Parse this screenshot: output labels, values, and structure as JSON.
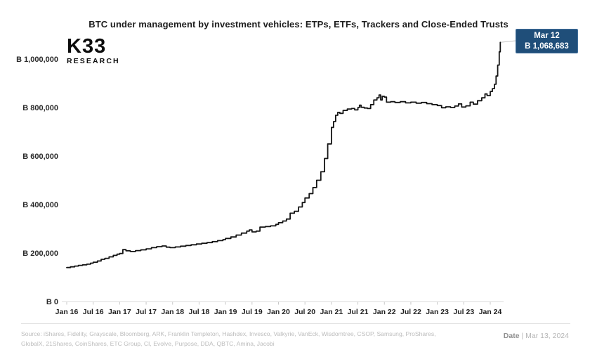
{
  "header": {
    "title": "BTC under management by investment vehicles: ETPs, ETFs, Trackers and Close-Ended Trusts",
    "logo_line1": "K33",
    "logo_line2": "RESEARCH"
  },
  "callout": {
    "date": "Mar 12",
    "value": "₿ 1,068,683",
    "bg_color": "#1F4E79",
    "text_color": "#FFFFFF"
  },
  "chart_data": {
    "type": "line",
    "title": "BTC under management by investment vehicles: ETPs, ETFs, Trackers and Close-Ended Trusts",
    "grid": false,
    "legend": false,
    "line_color": "#141414",
    "x_tick_labels": [
      "Jan 16",
      "Jul 16",
      "Jan 17",
      "Jul 17",
      "Jan 18",
      "Jul 18",
      "Jan 19",
      "Jul 19",
      "Jan 20",
      "Jul 20",
      "Jan 21",
      "Jul 21",
      "Jan 22",
      "Jul 22",
      "Jan 23",
      "Jul 23",
      "Jan 24"
    ],
    "y_tick_labels": [
      "₿ 1,000,000",
      "₿ 800,000",
      "₿ 600,000",
      "₿ 400,000",
      "₿ 200,000",
      "₿ 0"
    ],
    "y_tick_values": [
      1000000,
      800000,
      600000,
      400000,
      200000,
      0
    ],
    "xlim_years": [
      2016.0,
      2024.25
    ],
    "ylim": [
      0,
      1100000
    ],
    "annotation": {
      "label": "Mar 12",
      "value": 1068683,
      "value_text": "₿ 1,068,683"
    },
    "series": [
      {
        "name": "BTC under management",
        "points": [
          [
            2016.0,
            140000
          ],
          [
            2016.07,
            143000
          ],
          [
            2016.15,
            146000
          ],
          [
            2016.22,
            149000
          ],
          [
            2016.3,
            151000
          ],
          [
            2016.38,
            154000
          ],
          [
            2016.45,
            158000
          ],
          [
            2016.5,
            162000
          ],
          [
            2016.58,
            167000
          ],
          [
            2016.65,
            174000
          ],
          [
            2016.72,
            178000
          ],
          [
            2016.8,
            184000
          ],
          [
            2016.88,
            190000
          ],
          [
            2016.95,
            195000
          ],
          [
            2017.0,
            198000
          ],
          [
            2017.06,
            214000
          ],
          [
            2017.12,
            209000
          ],
          [
            2017.2,
            206000
          ],
          [
            2017.3,
            210000
          ],
          [
            2017.4,
            213000
          ],
          [
            2017.5,
            217000
          ],
          [
            2017.6,
            222000
          ],
          [
            2017.7,
            226000
          ],
          [
            2017.8,
            229000
          ],
          [
            2017.88,
            224000
          ],
          [
            2017.95,
            222000
          ],
          [
            2018.05,
            225000
          ],
          [
            2018.15,
            228000
          ],
          [
            2018.25,
            231000
          ],
          [
            2018.35,
            234000
          ],
          [
            2018.45,
            237000
          ],
          [
            2018.55,
            240000
          ],
          [
            2018.65,
            243000
          ],
          [
            2018.75,
            247000
          ],
          [
            2018.85,
            251000
          ],
          [
            2018.95,
            255000
          ],
          [
            2019.0,
            260000
          ],
          [
            2019.1,
            266000
          ],
          [
            2019.2,
            274000
          ],
          [
            2019.3,
            282000
          ],
          [
            2019.4,
            290000
          ],
          [
            2019.45,
            295000
          ],
          [
            2019.5,
            287000
          ],
          [
            2019.58,
            290000
          ],
          [
            2019.65,
            307000
          ],
          [
            2019.75,
            309000
          ],
          [
            2019.85,
            312000
          ],
          [
            2019.95,
            318000
          ],
          [
            2020.0,
            325000
          ],
          [
            2020.08,
            332000
          ],
          [
            2020.15,
            340000
          ],
          [
            2020.22,
            364000
          ],
          [
            2020.3,
            372000
          ],
          [
            2020.38,
            390000
          ],
          [
            2020.45,
            408000
          ],
          [
            2020.5,
            427000
          ],
          [
            2020.58,
            445000
          ],
          [
            2020.65,
            470000
          ],
          [
            2020.72,
            500000
          ],
          [
            2020.8,
            535000
          ],
          [
            2020.87,
            590000
          ],
          [
            2020.93,
            650000
          ],
          [
            2021.0,
            718000
          ],
          [
            2021.04,
            742000
          ],
          [
            2021.08,
            768000
          ],
          [
            2021.12,
            780000
          ],
          [
            2021.16,
            776000
          ],
          [
            2021.22,
            788000
          ],
          [
            2021.3,
            794000
          ],
          [
            2021.38,
            796000
          ],
          [
            2021.44,
            790000
          ],
          [
            2021.5,
            800000
          ],
          [
            2021.53,
            810000
          ],
          [
            2021.56,
            801000
          ],
          [
            2021.62,
            798000
          ],
          [
            2021.68,
            796000
          ],
          [
            2021.74,
            812000
          ],
          [
            2021.8,
            831000
          ],
          [
            2021.86,
            840000
          ],
          [
            2021.9,
            852000
          ],
          [
            2021.93,
            831000
          ],
          [
            2021.96,
            846000
          ],
          [
            2022.0,
            843000
          ],
          [
            2022.04,
            822000
          ],
          [
            2022.12,
            824000
          ],
          [
            2022.2,
            821000
          ],
          [
            2022.3,
            824000
          ],
          [
            2022.4,
            819000
          ],
          [
            2022.5,
            822000
          ],
          [
            2022.6,
            818000
          ],
          [
            2022.7,
            821000
          ],
          [
            2022.8,
            816000
          ],
          [
            2022.9,
            812000
          ],
          [
            2023.0,
            808000
          ],
          [
            2023.08,
            799000
          ],
          [
            2023.16,
            803000
          ],
          [
            2023.25,
            800000
          ],
          [
            2023.33,
            806000
          ],
          [
            2023.4,
            815000
          ],
          [
            2023.46,
            802000
          ],
          [
            2023.54,
            807000
          ],
          [
            2023.62,
            822000
          ],
          [
            2023.68,
            814000
          ],
          [
            2023.76,
            828000
          ],
          [
            2023.84,
            840000
          ],
          [
            2023.9,
            856000
          ],
          [
            2023.94,
            849000
          ],
          [
            2024.0,
            866000
          ],
          [
            2024.04,
            878000
          ],
          [
            2024.08,
            896000
          ],
          [
            2024.11,
            930000
          ],
          [
            2024.14,
            975000
          ],
          [
            2024.17,
            1030000
          ],
          [
            2024.19,
            1068683
          ]
        ]
      }
    ]
  },
  "footer": {
    "source_line1": "Source: iShares, Fidelity, Grayscale, Bloomberg, ARK, Franklin Templeton, Hashdex, Invesco, Valkyrie, VanEck, Wisdomtree, CSOP, Samsung, ProShares,",
    "source_line2": "GlobalX, 21Shares, CoinShares, ETC Group, CI, Evolve, Purpose, DDA, QBTC, Amina, Jacobi",
    "date_label": "Date",
    "date_value": "| Mar 13, 2024"
  }
}
